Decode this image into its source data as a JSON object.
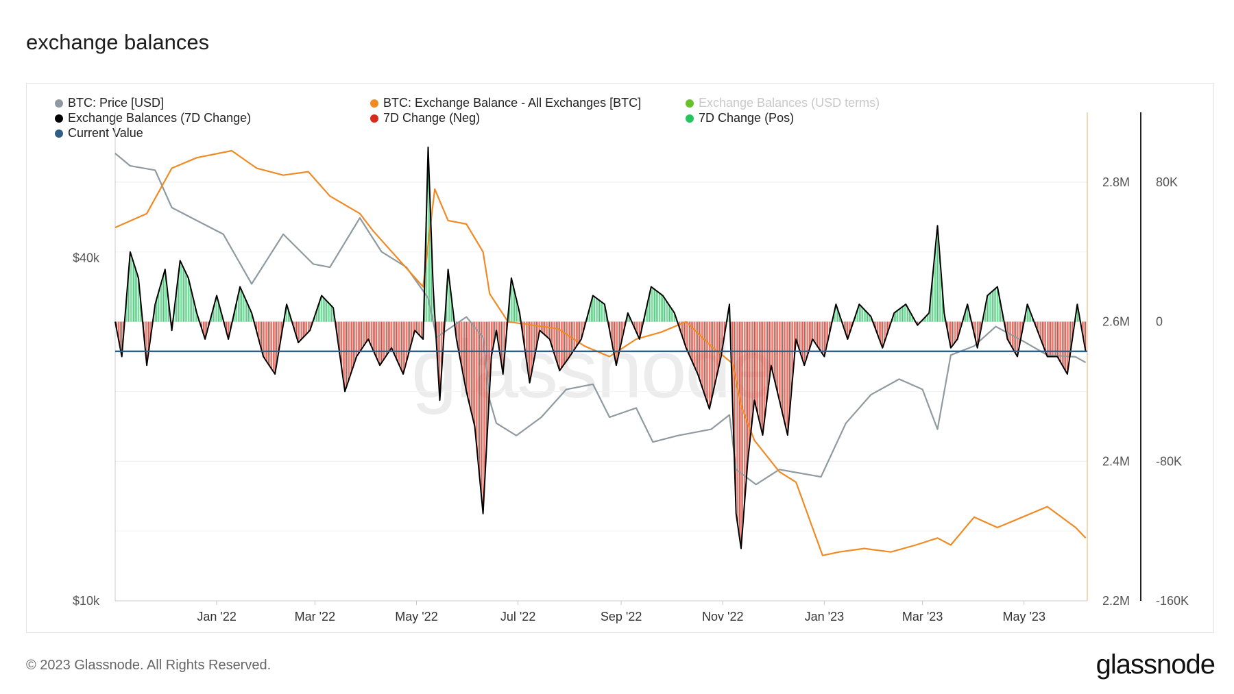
{
  "page": {
    "title": "exchange balances",
    "copyright": "© 2023 Glassnode. All Rights Reserved.",
    "brand": "glassnode",
    "watermark": "glassnode"
  },
  "legend": [
    {
      "label": "BTC: Price [USD]",
      "color": "#8e9aa0",
      "muted": false
    },
    {
      "label": "BTC: Exchange Balance - All Exchanges [BTC]",
      "color": "#f08a24",
      "muted": false
    },
    {
      "label": "Exchange Balances (USD terms)",
      "color": "#66c12a",
      "muted": true
    },
    {
      "label": "Exchange Balances (7D Change)",
      "color": "#000000",
      "muted": false
    },
    {
      "label": "7D Change (Neg)",
      "color": "#d62b1a",
      "muted": false
    },
    {
      "label": "7D Change (Pos)",
      "color": "#22c55e",
      "muted": false
    },
    {
      "label": "Current Value",
      "color": "#2f5f86",
      "muted": false
    }
  ],
  "chart_data": {
    "type": "line",
    "x_ticks": [
      "Jan '22",
      "Mar '22",
      "May '22",
      "Jul '22",
      "Sep '22",
      "Nov '22",
      "Jan '23",
      "Mar '23",
      "May '23"
    ],
    "x_range": [
      "2021-11-01",
      "2023-06-08"
    ],
    "left_axis": {
      "label": "",
      "scale": "log",
      "ticks": [
        "$10k",
        "$40k"
      ],
      "range": [
        10000,
        72000
      ]
    },
    "mid_axis": {
      "label": "",
      "ticks": [
        "2.2M",
        "2.4M",
        "2.6M",
        "2.8M"
      ],
      "range": [
        2200000,
        2900000
      ]
    },
    "right_axis": {
      "label": "",
      "ticks": [
        "-160K",
        "-80K",
        "0",
        "80K"
      ],
      "range": [
        -160000,
        120000
      ]
    },
    "current_value": -17000,
    "series": [
      {
        "name": "BTC: Price [USD]",
        "color": "#8e9aa0",
        "x": [
          "2021-11-01",
          "2021-11-10",
          "2021-11-25",
          "2021-12-05",
          "2021-12-20",
          "2022-01-05",
          "2022-01-22",
          "2022-02-10",
          "2022-02-28",
          "2022-03-10",
          "2022-03-28",
          "2022-04-10",
          "2022-04-25",
          "2022-05-08",
          "2022-05-13",
          "2022-05-31",
          "2022-06-10",
          "2022-06-14",
          "2022-06-18",
          "2022-06-30",
          "2022-07-15",
          "2022-07-30",
          "2022-08-15",
          "2022-08-25",
          "2022-09-10",
          "2022-09-20",
          "2022-10-05",
          "2022-10-25",
          "2022-11-05",
          "2022-11-09",
          "2022-11-21",
          "2022-12-05",
          "2022-12-30",
          "2023-01-14",
          "2023-01-29",
          "2023-02-15",
          "2023-03-01",
          "2023-03-10",
          "2023-03-18",
          "2023-04-01",
          "2023-04-14",
          "2023-05-01",
          "2023-05-15",
          "2023-06-01",
          "2023-06-07"
        ],
        "values": [
          61000,
          58000,
          57000,
          49000,
          46500,
          44000,
          36000,
          44000,
          39000,
          38500,
          47000,
          41000,
          38500,
          34000,
          29000,
          31500,
          29000,
          22500,
          20500,
          19500,
          21000,
          23500,
          24000,
          21000,
          21800,
          19000,
          19500,
          20000,
          21200,
          17000,
          16000,
          17000,
          16500,
          20500,
          23000,
          24500,
          23500,
          20000,
          27000,
          28000,
          30300,
          28500,
          27000,
          26800,
          26200
        ]
      },
      {
        "name": "BTC: Exchange Balance - All Exchanges [BTC]",
        "color": "#f08a24",
        "x": [
          "2021-11-01",
          "2021-11-20",
          "2021-12-05",
          "2021-12-20",
          "2022-01-10",
          "2022-01-25",
          "2022-02-10",
          "2022-02-25",
          "2022-03-10",
          "2022-03-28",
          "2022-04-05",
          "2022-04-20",
          "2022-05-05",
          "2022-05-12",
          "2022-05-20",
          "2022-05-31",
          "2022-06-10",
          "2022-06-14",
          "2022-06-25",
          "2022-07-10",
          "2022-07-25",
          "2022-08-10",
          "2022-08-25",
          "2022-09-10",
          "2022-09-25",
          "2022-10-10",
          "2022-10-25",
          "2022-11-07",
          "2022-11-12",
          "2022-11-20",
          "2022-12-05",
          "2022-12-15",
          "2022-12-31",
          "2023-01-10",
          "2023-01-25",
          "2023-02-10",
          "2023-02-25",
          "2023-03-10",
          "2023-03-18",
          "2023-04-01",
          "2023-04-15",
          "2023-04-30",
          "2023-05-15",
          "2023-06-01",
          "2023-06-07"
        ],
        "values": [
          2735000,
          2755000,
          2820000,
          2835000,
          2845000,
          2820000,
          2810000,
          2815000,
          2780000,
          2755000,
          2730000,
          2690000,
          2650000,
          2790000,
          2745000,
          2740000,
          2700000,
          2640000,
          2600000,
          2595000,
          2590000,
          2565000,
          2550000,
          2575000,
          2585000,
          2600000,
          2565000,
          2540000,
          2480000,
          2430000,
          2385000,
          2370000,
          2265000,
          2270000,
          2275000,
          2270000,
          2280000,
          2290000,
          2280000,
          2320000,
          2305000,
          2320000,
          2335000,
          2305000,
          2290000
        ]
      },
      {
        "name": "Exchange Balances (7D Change)",
        "color": "#000000",
        "x": [
          "2021-11-01",
          "2021-11-05",
          "2021-11-10",
          "2021-11-15",
          "2021-11-20",
          "2021-11-25",
          "2021-12-01",
          "2021-12-05",
          "2021-12-10",
          "2021-12-15",
          "2021-12-20",
          "2021-12-25",
          "2022-01-01",
          "2022-01-08",
          "2022-01-15",
          "2022-01-22",
          "2022-01-29",
          "2022-02-05",
          "2022-02-12",
          "2022-02-19",
          "2022-02-26",
          "2022-03-05",
          "2022-03-12",
          "2022-03-19",
          "2022-03-26",
          "2022-04-02",
          "2022-04-09",
          "2022-04-16",
          "2022-04-23",
          "2022-04-30",
          "2022-05-05",
          "2022-05-08",
          "2022-05-11",
          "2022-05-15",
          "2022-05-20",
          "2022-05-25",
          "2022-05-31",
          "2022-06-05",
          "2022-06-10",
          "2022-06-15",
          "2022-06-18",
          "2022-06-22",
          "2022-06-27",
          "2022-07-02",
          "2022-07-08",
          "2022-07-14",
          "2022-07-20",
          "2022-07-26",
          "2022-08-01",
          "2022-08-08",
          "2022-08-15",
          "2022-08-22",
          "2022-08-29",
          "2022-09-05",
          "2022-09-12",
          "2022-09-19",
          "2022-09-26",
          "2022-10-03",
          "2022-10-10",
          "2022-10-17",
          "2022-10-24",
          "2022-10-31",
          "2022-11-05",
          "2022-11-09",
          "2022-11-12",
          "2022-11-16",
          "2022-11-20",
          "2022-11-25",
          "2022-11-30",
          "2022-12-05",
          "2022-12-10",
          "2022-12-15",
          "2022-12-20",
          "2022-12-25",
          "2023-01-01",
          "2023-01-08",
          "2023-01-15",
          "2023-01-22",
          "2023-01-29",
          "2023-02-05",
          "2023-02-12",
          "2023-02-19",
          "2023-02-26",
          "2023-03-05",
          "2023-03-10",
          "2023-03-14",
          "2023-03-18",
          "2023-03-22",
          "2023-03-28",
          "2023-04-03",
          "2023-04-09",
          "2023-04-15",
          "2023-04-21",
          "2023-04-27",
          "2023-05-03",
          "2023-05-09",
          "2023-05-15",
          "2023-05-21",
          "2023-05-27",
          "2023-06-02",
          "2023-06-07"
        ],
        "values": [
          0,
          -20000,
          40000,
          25000,
          -25000,
          10000,
          30000,
          -5000,
          35000,
          25000,
          5000,
          -10000,
          15000,
          -10000,
          20000,
          5000,
          -20000,
          -30000,
          10000,
          -12000,
          -5000,
          15000,
          8000,
          -40000,
          -20000,
          -10000,
          -25000,
          -15000,
          -30000,
          -5000,
          -10000,
          100000,
          20000,
          -45000,
          30000,
          -10000,
          -40000,
          -60000,
          -110000,
          -20000,
          -5000,
          -30000,
          25000,
          5000,
          -35000,
          -5000,
          -10000,
          -28000,
          -20000,
          -10000,
          15000,
          10000,
          -25000,
          5000,
          -10000,
          20000,
          15000,
          5000,
          -15000,
          -30000,
          -50000,
          -20000,
          10000,
          -110000,
          -130000,
          -80000,
          -45000,
          -65000,
          -25000,
          -45000,
          -65000,
          -10000,
          -25000,
          -10000,
          -20000,
          10000,
          -10000,
          10000,
          3000,
          -15000,
          5000,
          10000,
          -2000,
          5000,
          55000,
          5000,
          -15000,
          -10000,
          10000,
          -15000,
          15000,
          20000,
          -10000,
          -20000,
          10000,
          -5000,
          -20000,
          -20000,
          -30000,
          10000,
          -17000
        ]
      }
    ]
  }
}
